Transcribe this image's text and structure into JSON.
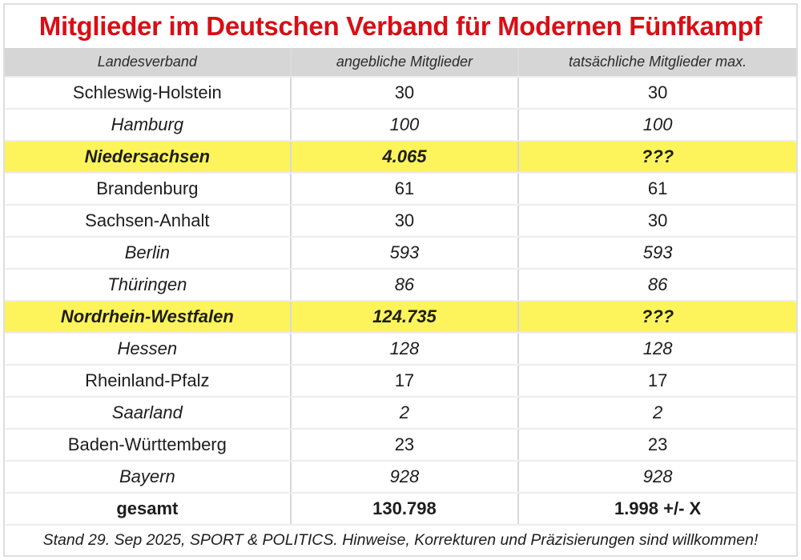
{
  "title": "Mitglieder im Deutschen Verband für Modernen Fünfkampf",
  "colors": {
    "title_red": "#d90e15",
    "highlight_yellow": "#fdf45c",
    "header_gray": "#d6d6d6",
    "row_border": "#ededed",
    "column_border": "#d8d8d8"
  },
  "table": {
    "headers": [
      "Landesverband",
      "angebliche Mitglieder",
      "tatsächliche Mitglieder max."
    ],
    "rows": [
      {
        "name": "Schleswig-Holstein",
        "claimed": "30",
        "actual": "30"
      },
      {
        "name": "Hamburg",
        "claimed": "100",
        "actual": "100"
      },
      {
        "name": "Niedersachsen",
        "claimed": "4.065",
        "actual": "???"
      },
      {
        "name": "Brandenburg",
        "claimed": "61",
        "actual": "61"
      },
      {
        "name": "Sachsen-Anhalt",
        "claimed": "30",
        "actual": "30"
      },
      {
        "name": "Berlin",
        "claimed": "593",
        "actual": "593"
      },
      {
        "name": "Thüringen",
        "claimed": "86",
        "actual": "86"
      },
      {
        "name": "Nordrhein-Westfalen",
        "claimed": "124.735",
        "actual": "???"
      },
      {
        "name": "Hessen",
        "claimed": "128",
        "actual": "128"
      },
      {
        "name": "Rheinland-Pfalz",
        "claimed": "17",
        "actual": "17"
      },
      {
        "name": "Saarland",
        "claimed": "2",
        "actual": "2"
      },
      {
        "name": "Baden-Württemberg",
        "claimed": "23",
        "actual": "23"
      },
      {
        "name": "Bayern",
        "claimed": "928",
        "actual": "928"
      }
    ],
    "total": {
      "name": "gesamt",
      "claimed": "130.798",
      "actual": "1.998 +/- X"
    }
  },
  "footnote": "Stand 29. Sep 2025, SPORT & POLITICS. Hinweise, Korrekturen und Präzisierungen sind willkommen!",
  "chart_data": {
    "type": "table",
    "title": "Mitglieder im Deutschen Verband für Modernen Fünfkampf",
    "columns": [
      "Landesverband",
      "angebliche Mitglieder",
      "tatsächliche Mitglieder max."
    ],
    "rows": [
      [
        "Schleswig-Holstein",
        30,
        30
      ],
      [
        "Hamburg",
        100,
        100
      ],
      [
        "Niedersachsen",
        4065,
        "???"
      ],
      [
        "Brandenburg",
        61,
        61
      ],
      [
        "Sachsen-Anhalt",
        30,
        30
      ],
      [
        "Berlin",
        593,
        593
      ],
      [
        "Thüringen",
        86,
        86
      ],
      [
        "Nordrhein-Westfalen",
        124735,
        "???"
      ],
      [
        "Hessen",
        128,
        128
      ],
      [
        "Rheinland-Pfalz",
        17,
        17
      ],
      [
        "Saarland",
        2,
        2
      ],
      [
        "Baden-Württemberg",
        23,
        23
      ],
      [
        "Bayern",
        928,
        928
      ]
    ],
    "total_row": [
      "gesamt",
      130798,
      "1.998 +/- X"
    ],
    "highlighted_rows": [
      "Niedersachsen",
      "Nordrhein-Westfalen"
    ],
    "italic_rows": [
      "Hamburg",
      "Niedersachsen",
      "Berlin",
      "Thüringen",
      "Nordrhein-Westfalen",
      "Hessen",
      "Saarland",
      "Bayern"
    ],
    "footnote": "Stand 29. Sep 2025, SPORT & POLITICS. Hinweise, Korrekturen und Präzisierungen sind willkommen!"
  }
}
